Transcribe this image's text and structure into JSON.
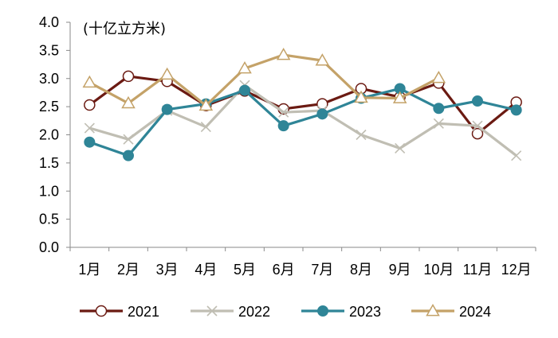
{
  "chart_data": {
    "type": "line",
    "title": "",
    "unit_label": "(十亿立方米)",
    "xlabel": "",
    "ylabel": "",
    "ylim": [
      0,
      4.0
    ],
    "yticks": [
      "0.0",
      "0.5",
      "1.0",
      "1.5",
      "2.0",
      "2.5",
      "3.0",
      "3.5",
      "4.0"
    ],
    "grid": false,
    "legend_position": "bottom",
    "categories": [
      "1月",
      "2月",
      "3月",
      "4月",
      "5月",
      "6月",
      "7月",
      "8月",
      "9月",
      "10月",
      "11月",
      "12月"
    ],
    "series": [
      {
        "name": "2021",
        "color": "#6b1a12",
        "marker": "open-circle",
        "values": [
          2.53,
          3.04,
          2.95,
          2.52,
          2.78,
          2.46,
          2.55,
          2.82,
          2.67,
          2.92,
          2.02,
          2.58
        ]
      },
      {
        "name": "2022",
        "color": "#c0beb3",
        "marker": "x",
        "values": [
          2.12,
          1.92,
          2.43,
          2.14,
          2.88,
          2.4,
          2.43,
          2.0,
          1.76,
          2.2,
          2.16,
          1.63
        ]
      },
      {
        "name": "2023",
        "color": "#2f8597",
        "marker": "filled-circle",
        "values": [
          1.87,
          1.63,
          2.45,
          2.55,
          2.79,
          2.16,
          2.37,
          2.65,
          2.82,
          2.47,
          2.6,
          2.44
        ]
      },
      {
        "name": "2024",
        "color": "#c4a268",
        "marker": "open-triangle",
        "values": [
          2.93,
          2.56,
          3.07,
          2.52,
          3.18,
          3.42,
          3.32,
          2.66,
          2.65,
          3.01,
          null,
          null
        ]
      }
    ]
  }
}
